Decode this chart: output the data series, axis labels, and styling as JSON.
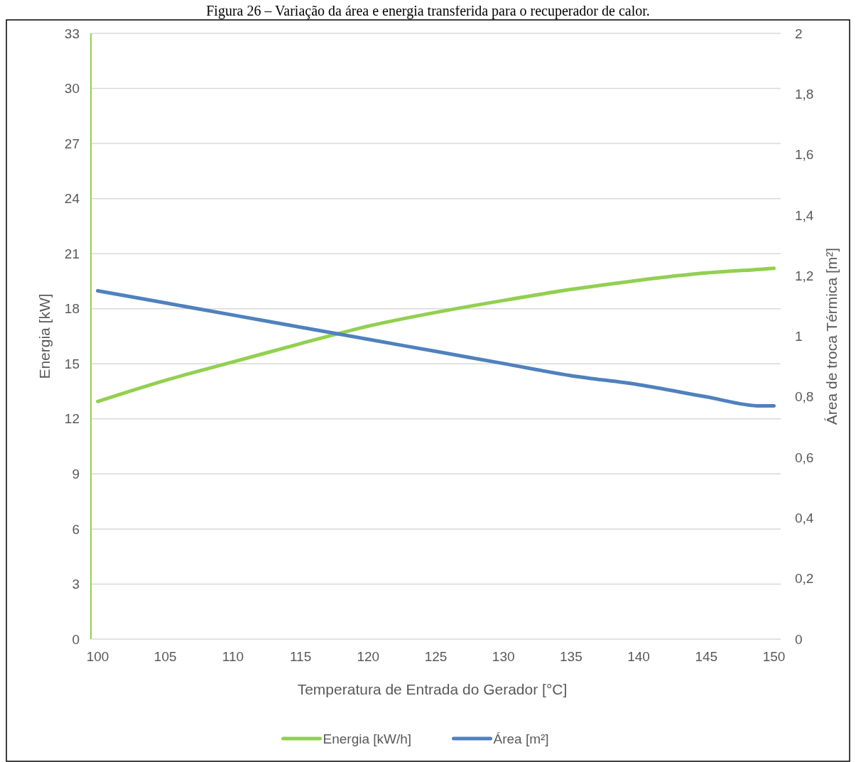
{
  "chart_data": {
    "type": "line",
    "title": "Figura 26 – Variação da área e energia transferida para o recuperador de calor.",
    "xlabel": "Temperatura de Entrada do Gerador [°C]",
    "ylabel": "Energia [kW]",
    "y2label": "Área de troca Térmica [m²]",
    "x": [
      100,
      105,
      110,
      115,
      120,
      125,
      130,
      135,
      140,
      145,
      149,
      150
    ],
    "series": [
      {
        "name": "Energia [kW/h]",
        "color": "#92d050",
        "values": [
          12.95,
          14.1,
          15.1,
          16.1,
          17.05,
          17.8,
          18.45,
          19.05,
          19.55,
          19.95,
          20.15,
          20.2
        ]
      },
      {
        "name": "Área [m²]",
        "color": "#4f81bd",
        "axis": "y2",
        "values": [
          1.15,
          1.11,
          1.07,
          1.03,
          0.99,
          0.95,
          0.91,
          0.87,
          0.84,
          0.8,
          0.77,
          0.77
        ]
      }
    ],
    "xlim": [
      99.5,
      150.5
    ],
    "xticks": [
      100,
      105,
      110,
      115,
      120,
      125,
      130,
      135,
      140,
      145,
      150
    ],
    "ylim": [
      0,
      33
    ],
    "yticks": [
      0,
      3,
      6,
      9,
      12,
      15,
      18,
      21,
      24,
      27,
      30,
      33
    ],
    "y2lim": [
      0,
      2
    ],
    "y2ticks": [
      0,
      {
        "value": 0.2,
        "label": "0,2"
      },
      {
        "value": 0.4,
        "label": "0,4"
      },
      {
        "value": 0.6,
        "label": "0,6"
      },
      {
        "value": 0.8,
        "label": "0,8"
      },
      1,
      {
        "value": 1.2,
        "label": "1,2"
      },
      {
        "value": 1.4,
        "label": "1,4"
      },
      {
        "value": 1.6,
        "label": "1,6"
      },
      {
        "value": 1.8,
        "label": "1,8"
      },
      2
    ],
    "grid": "y",
    "legend": "bottom",
    "marker": "none",
    "line_style": "solid"
  }
}
